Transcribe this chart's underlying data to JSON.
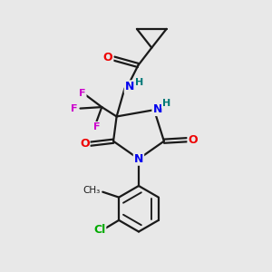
{
  "bg_color": "#e8e8e8",
  "bond_color": "#1a1a1a",
  "bond_width": 1.6,
  "atom_colors": {
    "N": "#0000ee",
    "O": "#ee0000",
    "F": "#cc00cc",
    "Cl": "#00aa00",
    "H": "#007777",
    "C": "#1a1a1a"
  },
  "font_size_atom": 9,
  "font_size_small": 8
}
